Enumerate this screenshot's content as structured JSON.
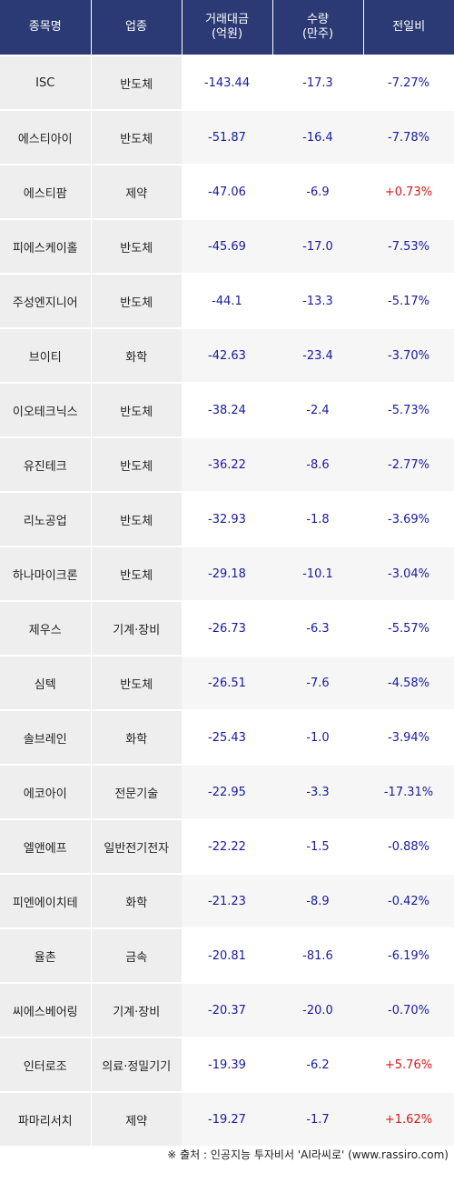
{
  "colors": {
    "header_bg": "#2b3a74",
    "negative": "#1a1aa0",
    "positive": "#d81818"
  },
  "headers": {
    "name": "종목명",
    "sector": "업종",
    "amount": "거래대금\n(억원)",
    "volume": "수량\n(만주)",
    "change": "전일비"
  },
  "rows": [
    {
      "name": "ISC",
      "sector": "반도체",
      "amount": "-143.44",
      "volume": "-17.3",
      "change": "-7.27%",
      "direction": "down"
    },
    {
      "name": "에스티아이",
      "sector": "반도체",
      "amount": "-51.87",
      "volume": "-16.4",
      "change": "-7.78%",
      "direction": "down"
    },
    {
      "name": "에스티팜",
      "sector": "제약",
      "amount": "-47.06",
      "volume": "-6.9",
      "change": "+0.73%",
      "direction": "up"
    },
    {
      "name": "피에스케이홀",
      "sector": "반도체",
      "amount": "-45.69",
      "volume": "-17.0",
      "change": "-7.53%",
      "direction": "down"
    },
    {
      "name": "주성엔지니어",
      "sector": "반도체",
      "amount": "-44.1",
      "volume": "-13.3",
      "change": "-5.17%",
      "direction": "down"
    },
    {
      "name": "브이티",
      "sector": "화학",
      "amount": "-42.63",
      "volume": "-23.4",
      "change": "-3.70%",
      "direction": "down"
    },
    {
      "name": "이오테크닉스",
      "sector": "반도체",
      "amount": "-38.24",
      "volume": "-2.4",
      "change": "-5.73%",
      "direction": "down"
    },
    {
      "name": "유진테크",
      "sector": "반도체",
      "amount": "-36.22",
      "volume": "-8.6",
      "change": "-2.77%",
      "direction": "down"
    },
    {
      "name": "리노공업",
      "sector": "반도체",
      "amount": "-32.93",
      "volume": "-1.8",
      "change": "-3.69%",
      "direction": "down"
    },
    {
      "name": "하나마이크론",
      "sector": "반도체",
      "amount": "-29.18",
      "volume": "-10.1",
      "change": "-3.04%",
      "direction": "down"
    },
    {
      "name": "제우스",
      "sector": "기계·장비",
      "amount": "-26.73",
      "volume": "-6.3",
      "change": "-5.57%",
      "direction": "down"
    },
    {
      "name": "심텍",
      "sector": "반도체",
      "amount": "-26.51",
      "volume": "-7.6",
      "change": "-4.58%",
      "direction": "down"
    },
    {
      "name": "솔브레인",
      "sector": "화학",
      "amount": "-25.43",
      "volume": "-1.0",
      "change": "-3.94%",
      "direction": "down"
    },
    {
      "name": "에코아이",
      "sector": "전문기술",
      "amount": "-22.95",
      "volume": "-3.3",
      "change": "-17.31%",
      "direction": "down"
    },
    {
      "name": "엘앤에프",
      "sector": "일반전기전자",
      "amount": "-22.22",
      "volume": "-1.5",
      "change": "-0.88%",
      "direction": "down"
    },
    {
      "name": "피엔에이치테",
      "sector": "화학",
      "amount": "-21.23",
      "volume": "-8.9",
      "change": "-0.42%",
      "direction": "down"
    },
    {
      "name": "율촌",
      "sector": "금속",
      "amount": "-20.81",
      "volume": "-81.6",
      "change": "-6.19%",
      "direction": "down"
    },
    {
      "name": "씨에스베어링",
      "sector": "기계·장비",
      "amount": "-20.37",
      "volume": "-20.0",
      "change": "-0.70%",
      "direction": "down"
    },
    {
      "name": "인터로조",
      "sector": "의료·정밀기기",
      "amount": "-19.39",
      "volume": "-6.2",
      "change": "+5.76%",
      "direction": "up"
    },
    {
      "name": "파마리서치",
      "sector": "제약",
      "amount": "-19.27",
      "volume": "-1.7",
      "change": "+1.62%",
      "direction": "up"
    }
  ],
  "footer": {
    "source": "※ 출처 : 인공지능 투자비서 'AI라씨로' (www.rassiro.com)"
  }
}
